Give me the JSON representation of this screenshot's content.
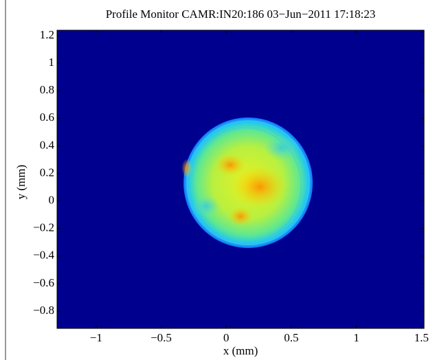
{
  "chart_data": {
    "type": "image",
    "title": "Profile Monitor CAMR:IN20:186 03−Jun−2011 17:18:23",
    "x_label": "x  (mm)",
    "y_label": "y  (mm)",
    "xlim": [
      -1.3,
      1.52
    ],
    "ylim": [
      -0.925,
      1.24
    ],
    "xticks": [
      {
        "value": -1,
        "label": "−1"
      },
      {
        "value": -0.5,
        "label": "−0.5"
      },
      0,
      0.5,
      1,
      1.5
    ],
    "yticks": [
      {
        "value": -0.8,
        "label": "−0.8"
      },
      {
        "value": -0.6,
        "label": "−0.6"
      },
      {
        "value": -0.4,
        "label": "−0.4"
      },
      {
        "value": -0.2,
        "label": "−0.2"
      },
      0,
      0.2,
      0.4,
      0.6,
      0.8,
      1,
      1.2
    ],
    "background_color": "#00008f"
  }
}
